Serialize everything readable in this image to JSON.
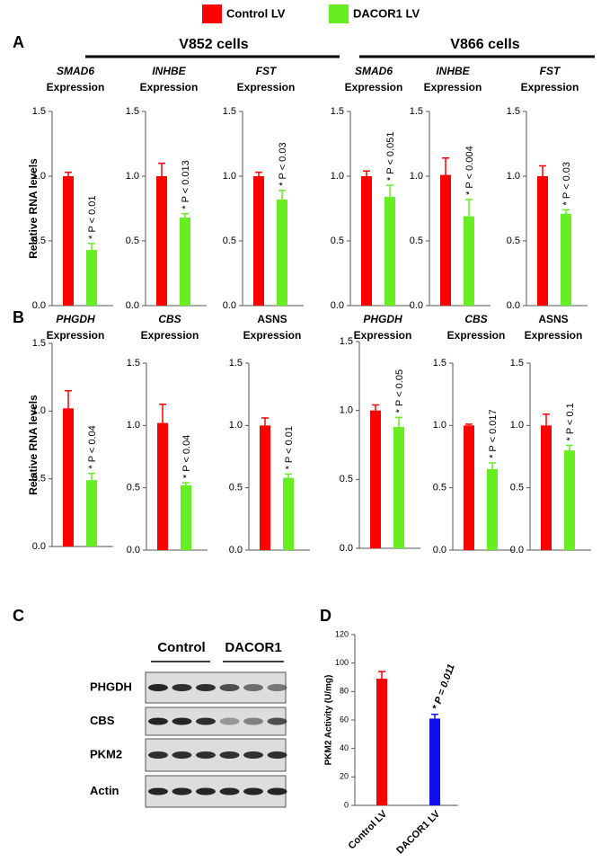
{
  "legend": [
    {
      "name": "Control LV",
      "color": "#ff0000"
    },
    {
      "name": "DACOR1 LV",
      "color": "#66ee22"
    }
  ],
  "panel_labels": [
    "A",
    "B",
    "C",
    "D"
  ],
  "groups": [
    "V852 cells",
    "V866 cells"
  ],
  "blot": {
    "column_groups": [
      "Control",
      "DACOR1"
    ],
    "rows": [
      "PHGDH",
      "CBS",
      "PKM2",
      "Actin"
    ]
  },
  "chart_data": [
    {
      "type": "bar",
      "title": "SMAD6",
      "subtitle": "Expression",
      "title_italic": true,
      "ylabel": "Relative RNA levels",
      "values": [
        1.0,
        0.43
      ],
      "errors": [
        0.03,
        0.05
      ],
      "colors": [
        "#ff0000",
        "#66ee22"
      ],
      "annotation": "* P < 0.01",
      "ylim": [
        0,
        1.5
      ],
      "yticks": [
        {
          "value": 0,
          "label": "0.0"
        },
        {
          "value": 0.5,
          "label": "0.5"
        },
        {
          "value": 1,
          "label": "1.0"
        },
        {
          "value": 1.5,
          "label": "1.5"
        }
      ]
    },
    {
      "type": "bar",
      "title": "INHBE",
      "subtitle": "Expression",
      "title_italic": true,
      "values": [
        1.0,
        0.68
      ],
      "errors": [
        0.1,
        0.03
      ],
      "colors": [
        "#ff0000",
        "#66ee22"
      ],
      "annotation": "* P < 0.013",
      "ylim": [
        0,
        1.5
      ],
      "yticks": [
        {
          "value": 0,
          "label": "0.0"
        },
        {
          "value": 0.5,
          "label": "0.5"
        },
        {
          "value": 1,
          "label": "1.0"
        },
        {
          "value": 1.5,
          "label": "1.5"
        }
      ]
    },
    {
      "type": "bar",
      "title": "FST",
      "subtitle": "Expression",
      "title_italic": true,
      "values": [
        1.0,
        0.82
      ],
      "errors": [
        0.03,
        0.07
      ],
      "colors": [
        "#ff0000",
        "#66ee22"
      ],
      "annotation": "* P < 0.03",
      "ylim": [
        0,
        1.5
      ],
      "yticks": [
        {
          "value": 0,
          "label": "0.0"
        },
        {
          "value": 0.5,
          "label": "0.5"
        },
        {
          "value": 1,
          "label": "1.0"
        },
        {
          "value": 1.5,
          "label": "1.5"
        }
      ]
    },
    {
      "type": "bar",
      "title": "SMAD6",
      "subtitle": "Expression",
      "title_italic": true,
      "values": [
        1.0,
        0.84
      ],
      "errors": [
        0.04,
        0.09
      ],
      "colors": [
        "#ff0000",
        "#66ee22"
      ],
      "annotation": "* P < 0.051",
      "ylim": [
        0,
        1.5
      ],
      "yticks": [
        {
          "value": 0,
          "label": "0.0"
        },
        {
          "value": 0.5,
          "label": "0.5"
        },
        {
          "value": 1,
          "label": "1.0"
        },
        {
          "value": 1.5,
          "label": "1.5"
        }
      ]
    },
    {
      "type": "bar",
      "title": "INHBE",
      "subtitle": "Expression",
      "title_italic": true,
      "values": [
        1.01,
        0.69
      ],
      "errors": [
        0.13,
        0.13
      ],
      "colors": [
        "#ff0000",
        "#66ee22"
      ],
      "annotation": "* P < 0.004",
      "ylim": [
        0,
        1.5
      ],
      "yticks": [
        {
          "value": 0,
          "label": "0.0"
        },
        {
          "value": 0.5,
          "label": "0.5"
        },
        {
          "value": 1,
          "label": "1.0"
        },
        {
          "value": 1.5,
          "label": "1.5"
        }
      ]
    },
    {
      "type": "bar",
      "title": "FST",
      "subtitle": "Expression",
      "title_italic": true,
      "values": [
        1.0,
        0.71
      ],
      "errors": [
        0.08,
        0.03
      ],
      "colors": [
        "#ff0000",
        "#66ee22"
      ],
      "annotation": "* P < 0.03",
      "ylim": [
        0,
        1.5
      ],
      "yticks": [
        {
          "value": 0,
          "label": "0.0"
        },
        {
          "value": 0.5,
          "label": "0.5"
        },
        {
          "value": 1,
          "label": "1.0"
        },
        {
          "value": 1.5,
          "label": "1.5"
        }
      ]
    },
    {
      "type": "bar",
      "title": "PHGDH",
      "subtitle": "Expression",
      "title_italic": true,
      "ylabel": "Relative RNA levels",
      "values": [
        1.02,
        0.49
      ],
      "errors": [
        0.13,
        0.05
      ],
      "colors": [
        "#ff0000",
        "#66ee22"
      ],
      "annotation": "* P < 0.04",
      "ylim": [
        0,
        1.5
      ],
      "yticks": [
        {
          "value": 0,
          "label": "0.0"
        },
        {
          "value": 0.5,
          "label": "0.5"
        },
        {
          "value": 1,
          "label": "1.0"
        },
        {
          "value": 1.5,
          "label": "1.5"
        }
      ]
    },
    {
      "type": "bar",
      "title": "CBS",
      "subtitle": "Expression",
      "title_italic": true,
      "values": [
        1.02,
        0.52
      ],
      "errors": [
        0.15,
        0.02
      ],
      "colors": [
        "#ff0000",
        "#66ee22"
      ],
      "annotation": "* P < 0.04",
      "ylim": [
        0,
        1.5
      ],
      "yticks": [
        {
          "value": 0,
          "label": "0.0"
        },
        {
          "value": 0.5,
          "label": "0.5"
        },
        {
          "value": 1,
          "label": "1.0"
        },
        {
          "value": 1.5,
          "label": "1.5"
        }
      ]
    },
    {
      "type": "bar",
      "title": "ASNS",
      "subtitle": "Expression",
      "title_italic": false,
      "values": [
        1.0,
        0.58
      ],
      "errors": [
        0.06,
        0.03
      ],
      "colors": [
        "#ff0000",
        "#66ee22"
      ],
      "annotation": "* P < 0.01",
      "ylim": [
        0,
        1.5
      ],
      "yticks": [
        {
          "value": 0,
          "label": "0.0"
        },
        {
          "value": 0.5,
          "label": "0.5"
        },
        {
          "value": 1,
          "label": "1.0"
        },
        {
          "value": 1.5,
          "label": "1.5"
        }
      ]
    },
    {
      "type": "bar",
      "title": "PHGDH",
      "subtitle": "Expression",
      "title_italic": true,
      "values": [
        1.0,
        0.88
      ],
      "errors": [
        0.04,
        0.07
      ],
      "colors": [
        "#ff0000",
        "#66ee22"
      ],
      "annotation": "* P < 0.05",
      "ylim": [
        0,
        1.5
      ],
      "yticks": [
        {
          "value": 0,
          "label": "0.0"
        },
        {
          "value": 0.5,
          "label": "0.5"
        },
        {
          "value": 1,
          "label": "1.0"
        },
        {
          "value": 1.5,
          "label": "1.5"
        }
      ]
    },
    {
      "type": "bar",
      "title": "CBS",
      "subtitle": "Expression",
      "title_italic": true,
      "values": [
        1.0,
        0.65
      ],
      "errors": [
        0.01,
        0.05
      ],
      "colors": [
        "#ff0000",
        "#66ee22"
      ],
      "annotation": "* P < 0.017",
      "ylim": [
        0,
        1.5
      ],
      "yticks": [
        {
          "value": 0,
          "label": "0.0"
        },
        {
          "value": 0.5,
          "label": "0.5"
        },
        {
          "value": 1,
          "label": "1.0"
        },
        {
          "value": 1.5,
          "label": "1.5"
        }
      ]
    },
    {
      "type": "bar",
      "title": "ASNS",
      "subtitle": "Expression",
      "title_italic": false,
      "values": [
        1.0,
        0.8
      ],
      "errors": [
        0.09,
        0.04
      ],
      "colors": [
        "#ff0000",
        "#66ee22"
      ],
      "annotation": "* P < 0.1",
      "ylim": [
        0,
        1.5
      ],
      "yticks": [
        {
          "value": 0,
          "label": "0.0"
        },
        {
          "value": 0.5,
          "label": "0.5"
        },
        {
          "value": 1,
          "label": "1.0"
        },
        {
          "value": 1.5,
          "label": "1.5"
        }
      ]
    },
    {
      "type": "bar",
      "ylabel": "PKM2 Activity (U/mg)",
      "categories": [
        "Control LV",
        "DACOR1 LV"
      ],
      "values": [
        89,
        61
      ],
      "errors": [
        5,
        3
      ],
      "colors": [
        "#ff0000",
        "#1010ee"
      ],
      "annotation": "* P = 0.011",
      "ylim": [
        0,
        120
      ],
      "yticks": [
        0,
        20,
        40,
        60,
        80,
        100,
        120
      ]
    }
  ]
}
